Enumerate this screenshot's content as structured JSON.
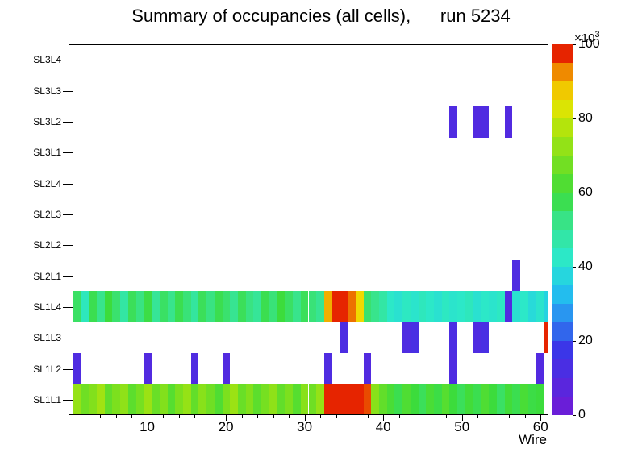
{
  "title": "Summary of occupancies (all cells),      run 5234",
  "x_axis": {
    "label": "Wire",
    "ticks": [
      10,
      20,
      30,
      40,
      50,
      60
    ]
  },
  "colorbar": {
    "ticks": [
      0,
      20,
      40,
      60,
      80,
      100
    ],
    "max": 100,
    "scale_base": "×10",
    "scale_exp": "3"
  },
  "chart_data": {
    "type": "heatmap",
    "title": "Summary of occupancies (all cells),      run 5234",
    "xlabel": "Wire",
    "rows_bottom_to_top": [
      "SL1L1",
      "SL1L2",
      "SL1L3",
      "SL1L4",
      "SL2L1",
      "SL2L2",
      "SL2L3",
      "SL2L4",
      "SL3L1",
      "SL3L2",
      "SL3L3",
      "SL3L4"
    ],
    "x_min": 0,
    "x_max": 61,
    "x_ticks": [
      10,
      20,
      30,
      40,
      50,
      60
    ],
    "zmin": 0,
    "zmax": 100,
    "z_scale_note": "values in units of 10^3",
    "palette": [
      [
        0.0,
        "#6a1ed8"
      ],
      [
        0.16,
        "#3a36e8"
      ],
      [
        0.25,
        "#2a8cf0"
      ],
      [
        0.33,
        "#22c8ee"
      ],
      [
        0.42,
        "#2ce8c8"
      ],
      [
        0.52,
        "#38e48c"
      ],
      [
        0.6,
        "#3cdc3c"
      ],
      [
        0.7,
        "#7ce01e"
      ],
      [
        0.79,
        "#b4e40c"
      ],
      [
        0.87,
        "#f0e400"
      ],
      [
        0.94,
        "#f09800"
      ],
      [
        1.0,
        "#e62400"
      ]
    ],
    "values": {
      "SL1L1": [
        74,
        68,
        71,
        76,
        66,
        70,
        73,
        65,
        69,
        75,
        67,
        71,
        64,
        70,
        74,
        66,
        72,
        68,
        63,
        70,
        75,
        67,
        71,
        65,
        69,
        73,
        66,
        70,
        64,
        72,
        68,
        74,
        100,
        100,
        100,
        100,
        100,
        98,
        72,
        66,
        62,
        58,
        63,
        60,
        57,
        62,
        59,
        64,
        60,
        57,
        61,
        58,
        63,
        60,
        56,
        61,
        58,
        62,
        59,
        60,
        0
      ],
      "SL1L2": {
        "1": 9,
        "10": 8,
        "16": 9,
        "20": 8,
        "33": 9,
        "38": 8,
        "49": 9,
        "60": 8
      },
      "SL1L3": {
        "35": 10,
        "43": 9,
        "44": 11,
        "49": 10,
        "52": 9,
        "53": 11,
        "61": 100
      },
      "SL1L4": [
        56,
        44,
        58,
        52,
        60,
        55,
        48,
        57,
        53,
        59,
        50,
        56,
        52,
        58,
        54,
        49,
        57,
        53,
        58,
        55,
        51,
        57,
        53,
        50,
        58,
        54,
        60,
        56,
        52,
        57,
        54,
        51,
        92,
        100,
        100,
        96,
        88,
        55,
        52,
        48,
        42,
        40,
        43,
        41,
        44,
        42,
        40,
        43,
        41,
        42,
        44,
        40,
        42,
        41,
        43,
        8,
        40,
        42,
        38,
        41,
        36
      ],
      "SL2L1": {
        "57": 9
      },
      "SL3L2": {
        "49": 9,
        "52": 8,
        "53": 9,
        "56": 8
      }
    }
  }
}
